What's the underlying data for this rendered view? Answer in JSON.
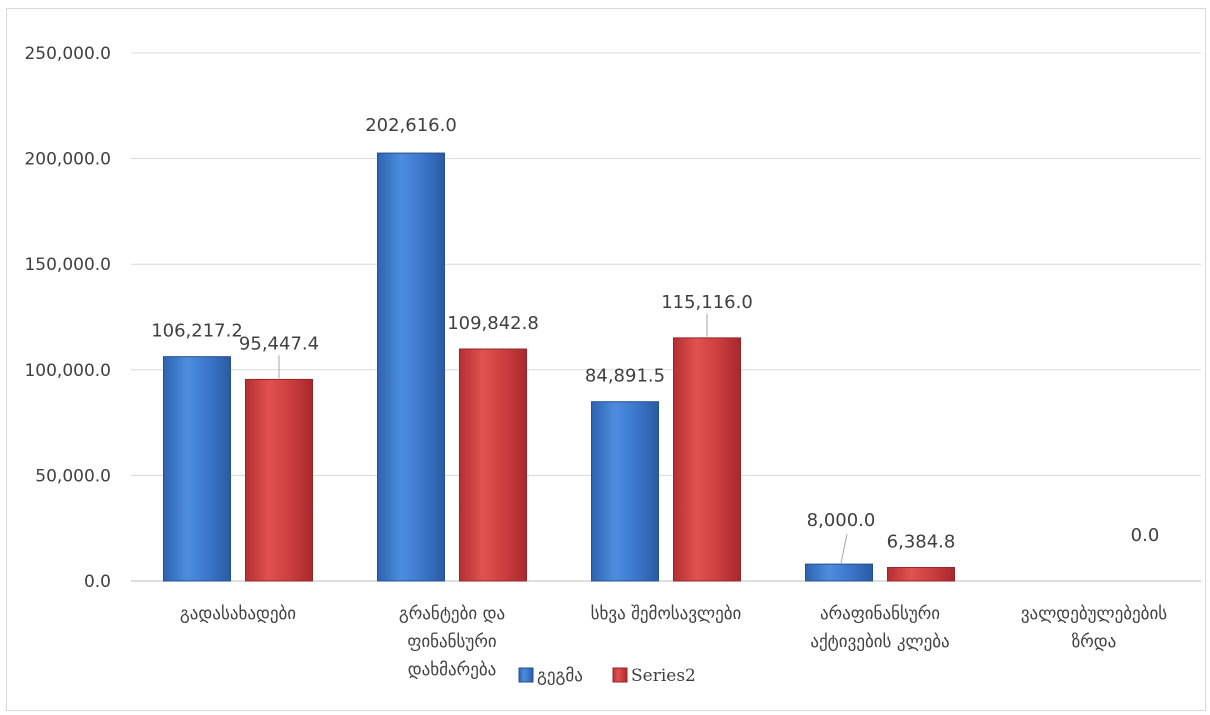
{
  "chart_data": {
    "type": "bar",
    "categories": [
      [
        "გადასახადები"
      ],
      [
        "გრანტები და",
        "ფინანსური",
        "დახმარება"
      ],
      [
        "სხვა შემოსავლები"
      ],
      [
        "არაფინანსური",
        "აქტივების კლება"
      ],
      [
        "ვალდებულებების",
        "ზრდა"
      ]
    ],
    "series": [
      {
        "name": "გეგმა",
        "color": "#4a86d8",
        "values": [
          106217.2,
          202616.0,
          84891.5,
          8000.0,
          0.0
        ],
        "labels": [
          "106,217.2",
          "202,616.0",
          "84,891.5",
          "8,000.0",
          ""
        ]
      },
      {
        "name": "Series2",
        "color": "#d64548",
        "values": [
          95447.4,
          109842.8,
          115116.0,
          6384.8,
          0.0
        ],
        "labels": [
          "95,447.4",
          "109,842.8",
          "115,116.0",
          "6,384.8",
          "0.0"
        ]
      }
    ],
    "y_ticks": [
      "0.0",
      "50,000.0",
      "100,000.0",
      "150,000.0",
      "200,000.0",
      "250,000.0"
    ],
    "ylim": [
      0,
      250000
    ],
    "grid": true,
    "legend_position": "bottom"
  }
}
